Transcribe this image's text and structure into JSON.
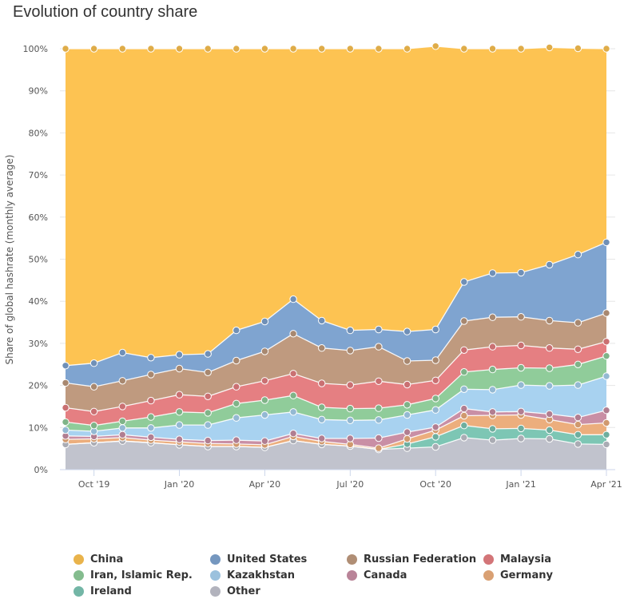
{
  "title": "Evolution of country share",
  "chart_data": {
    "type": "area",
    "stacked": true,
    "title": "Evolution of country share",
    "ylabel": "Share of global hashrate (monthly average)",
    "xlabel": "",
    "ylim": [
      0,
      100
    ],
    "y_ticks": [
      "0%",
      "10%",
      "20%",
      "30%",
      "40%",
      "50%",
      "60%",
      "70%",
      "80%",
      "90%",
      "100%"
    ],
    "x_ticks": [
      {
        "index": 1,
        "label": "Oct '19"
      },
      {
        "index": 4,
        "label": "Jan '20"
      },
      {
        "index": 7,
        "label": "Apr '20"
      },
      {
        "index": 10,
        "label": "Jul '20"
      },
      {
        "index": 13,
        "label": "Oct '20"
      },
      {
        "index": 16,
        "label": "Jan '21"
      },
      {
        "index": 19,
        "label": "Apr '21"
      }
    ],
    "x": [
      "Sep 2019",
      "Oct 2019",
      "Nov 2019",
      "Dec 2019",
      "Jan 2020",
      "Feb 2020",
      "Mar 2020",
      "Apr 2020",
      "May 2020",
      "Jun 2020",
      "Jul 2020",
      "Aug 2020",
      "Sep 2020",
      "Oct 2020",
      "Nov 2020",
      "Dec 2020",
      "Jan 2021",
      "Feb 2021",
      "Mar 2021",
      "Apr 2021"
    ],
    "series": [
      {
        "name": "Other",
        "color": "#c1c3cd",
        "values": [
          6.0,
          6.4,
          6.8,
          6.4,
          5.9,
          5.5,
          5.5,
          5.3,
          6.9,
          6.0,
          5.6,
          4.8,
          5.1,
          5.4,
          7.6,
          7.0,
          7.4,
          7.3,
          6.1,
          6.0
        ]
      },
      {
        "name": "Ireland",
        "color": "#7dc6b4",
        "values": [
          0,
          0,
          0,
          0,
          0,
          0,
          0,
          0,
          0,
          0,
          0,
          0,
          1.0,
          2.4,
          2.9,
          2.7,
          2.4,
          2.1,
          2.2,
          2.3
        ]
      },
      {
        "name": "Germany",
        "color": "#ecae7d",
        "values": [
          1.2,
          0.9,
          0.8,
          0.6,
          0.7,
          0.7,
          0.6,
          0.6,
          1.0,
          0.7,
          0.4,
          0.3,
          1.2,
          1.6,
          2.3,
          3.2,
          3.2,
          2.5,
          2.4,
          2.8
        ]
      },
      {
        "name": "Canada",
        "color": "#c98fa5",
        "values": [
          0.8,
          0.6,
          0.7,
          0.7,
          0.6,
          0.7,
          0.9,
          0.9,
          0.7,
          0.7,
          1.4,
          2.4,
          1.6,
          0.7,
          1.7,
          0.8,
          0.8,
          1.3,
          1.7,
          3.0
        ]
      },
      {
        "name": "Kazakhstan",
        "color": "#a8d2f0",
        "values": [
          1.4,
          1.2,
          1.6,
          2.2,
          3.4,
          3.7,
          5.3,
          6.2,
          5.1,
          4.5,
          4.3,
          4.3,
          4.1,
          4.1,
          4.6,
          5.3,
          6.3,
          6.7,
          7.7,
          8.1
        ]
      },
      {
        "name": "Iran, Islamic Rep.",
        "color": "#90cc9a",
        "values": [
          1.9,
          1.4,
          1.6,
          2.6,
          3.1,
          2.9,
          3.4,
          3.5,
          3.9,
          2.9,
          2.8,
          2.8,
          2.4,
          2.7,
          4.1,
          4.8,
          4.1,
          4.2,
          4.9,
          4.8
        ]
      },
      {
        "name": "Malaysia",
        "color": "#e57f82",
        "values": [
          3.4,
          3.3,
          3.5,
          3.9,
          4.1,
          3.9,
          4.0,
          4.6,
          5.2,
          5.7,
          5.6,
          6.4,
          4.8,
          4.3,
          5.2,
          5.4,
          5.3,
          4.8,
          3.6,
          3.4
        ]
      },
      {
        "name": "Russian Federation",
        "color": "#bf9a7f",
        "values": [
          5.9,
          5.9,
          6.1,
          6.2,
          6.2,
          5.7,
          6.2,
          7.0,
          9.5,
          8.4,
          8.2,
          8.2,
          5.6,
          4.8,
          6.9,
          7.0,
          6.8,
          6.5,
          6.3,
          6.8
        ]
      },
      {
        "name": "United States",
        "color": "#7fa4d0",
        "values": [
          4.1,
          5.6,
          6.7,
          4.0,
          3.3,
          4.4,
          7.2,
          7.1,
          8.2,
          6.5,
          4.8,
          4.1,
          7.0,
          7.3,
          9.3,
          10.5,
          10.5,
          13.3,
          16.2,
          16.8
        ]
      },
      {
        "name": "China",
        "color": "#fdc352",
        "values": [
          75.3,
          74.7,
          72.2,
          73.4,
          72.7,
          72.5,
          66.9,
          64.8,
          59.5,
          64.6,
          66.9,
          66.7,
          67.2,
          67.3,
          55.4,
          53.3,
          53.2,
          51.6,
          49.0,
          46.0
        ]
      }
    ],
    "grid": true,
    "legend_position": "bottom",
    "legend_order": [
      "China",
      "United States",
      "Russian Federation",
      "Malaysia",
      "Iran, Islamic Rep.",
      "Kazakhstan",
      "Canada",
      "Germany",
      "Ireland",
      "Other"
    ]
  }
}
